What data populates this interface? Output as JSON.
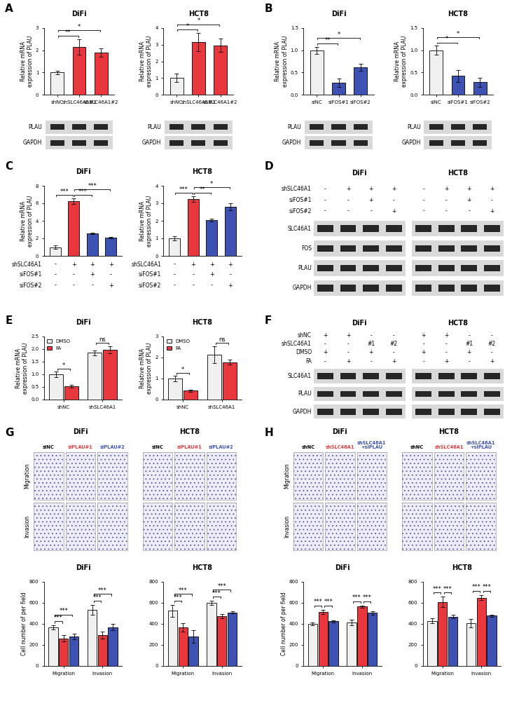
{
  "panel_labels": [
    "A",
    "B",
    "C",
    "D",
    "E",
    "F",
    "G",
    "H"
  ],
  "chart_data": [
    {
      "type": "bar",
      "title": "DiFi",
      "y_label": "Relative mRNA\nexpression of PLAU",
      "categories": [
        "shNC",
        "shSLC46A1#1",
        "shSLC46A1#2"
      ],
      "values": [
        1.0,
        2.15,
        1.9
      ],
      "errors": [
        0.08,
        0.35,
        0.2
      ],
      "colors": [
        "#f0f0f0",
        "#e8383d",
        "#e8383d"
      ],
      "ylim": [
        0,
        3
      ],
      "yticks": [
        0,
        1,
        2,
        3
      ],
      "brackets": [
        {
          "from": 0,
          "to": 1,
          "label": "**"
        },
        {
          "from": 0,
          "to": 2,
          "label": "*"
        }
      ]
    },
    {
      "type": "bar",
      "title": "HCT8",
      "y_label": "Relative mRNA\nexpression of PLAU",
      "categories": [
        "shNC",
        "shSLC46A1#1",
        "shSLC46A1#2"
      ],
      "values": [
        1.0,
        3.15,
        2.95
      ],
      "errors": [
        0.25,
        0.55,
        0.4
      ],
      "colors": [
        "#f0f0f0",
        "#e8383d",
        "#e8383d"
      ],
      "ylim": [
        0,
        4
      ],
      "yticks": [
        0,
        1,
        2,
        3,
        4
      ],
      "brackets": [
        {
          "from": 0,
          "to": 1,
          "label": "*"
        },
        {
          "from": 0,
          "to": 2,
          "label": "*"
        }
      ]
    },
    {
      "type": "bar",
      "title": "DiFi",
      "y_label": "Relative mRNA\nexpression of PLAU",
      "categories": [
        "siNC",
        "siFOS#1",
        "siFOS#2"
      ],
      "values": [
        1.0,
        0.27,
        0.62
      ],
      "errors": [
        0.08,
        0.1,
        0.08
      ],
      "colors": [
        "#f0f0f0",
        "#3d52b3",
        "#3d52b3"
      ],
      "ylim": [
        0,
        1.5
      ],
      "yticks": [
        {
          "value": 0,
          "label": "0.0"
        },
        0.5,
        {
          "value": 1,
          "label": "1.0"
        },
        1.5
      ],
      "brackets": [
        {
          "from": 0,
          "to": 1,
          "label": "**"
        },
        {
          "from": 0,
          "to": 2,
          "label": "*"
        }
      ]
    },
    {
      "type": "bar",
      "title": "HCT8",
      "y_label": "Relative mRNA\nexpression of PLAU",
      "categories": [
        "siNC",
        "siFOS#1",
        "siFOS#2"
      ],
      "values": [
        1.0,
        0.42,
        0.28
      ],
      "errors": [
        0.1,
        0.13,
        0.1
      ],
      "colors": [
        "#f0f0f0",
        "#3d52b3",
        "#3d52b3"
      ],
      "ylim": [
        0,
        1.5
      ],
      "yticks": [
        {
          "value": 0,
          "label": "0.0"
        },
        0.5,
        {
          "value": 1,
          "label": "1.0"
        },
        1.5
      ],
      "brackets": [
        {
          "from": 0,
          "to": 1,
          "label": "*"
        },
        {
          "from": 0,
          "to": 2,
          "label": "*"
        }
      ]
    },
    {
      "type": "bar",
      "title": "DiFi",
      "y_label": "Relative mRNA\nexpression of PLAU",
      "categories": [
        null,
        null,
        null,
        null
      ],
      "values": [
        1.0,
        6.25,
        2.55,
        2.1
      ],
      "errors": [
        0.2,
        0.3,
        0.1,
        0.1
      ],
      "colors": [
        "#f0f0f0",
        "#e8383d",
        "#3d52b3",
        "#3d52b3"
      ],
      "ylim": [
        0,
        8
      ],
      "yticks": [
        0,
        2,
        4,
        6,
        8
      ],
      "condition_table": {
        "rows": [
          {
            "name": "shSLC46A1",
            "marks": [
              "-",
              "+",
              "+",
              "+"
            ]
          },
          {
            "name": "siFOS#1",
            "marks": [
              "-",
              "-",
              "+",
              "-"
            ]
          },
          {
            "name": "siFOS#2",
            "marks": [
              "-",
              "-",
              "-",
              "+"
            ]
          }
        ]
      },
      "brackets": [
        {
          "from": 0,
          "to": 1,
          "label": "***"
        },
        {
          "from": 1,
          "to": 2,
          "label": "***"
        },
        {
          "from": 1,
          "to": 3,
          "label": "***"
        }
      ]
    },
    {
      "type": "bar",
      "title": "HCT8",
      "y_label": "Relative mRNA\nexpression of PLAU",
      "categories": [
        null,
        null,
        null,
        null
      ],
      "values": [
        1.0,
        3.25,
        2.05,
        2.8
      ],
      "errors": [
        0.12,
        0.15,
        0.08,
        0.2
      ],
      "colors": [
        "#f0f0f0",
        "#e8383d",
        "#3d52b3",
        "#3d52b3"
      ],
      "ylim": [
        0,
        4
      ],
      "yticks": [
        0,
        1,
        2,
        3,
        4
      ],
      "condition_table": {
        "rows": [
          {
            "name": "shSLC46A1",
            "marks": [
              "-",
              "+",
              "+",
              "+"
            ]
          },
          {
            "name": "siFOS#1",
            "marks": [
              "-",
              "-",
              "+",
              "-"
            ]
          },
          {
            "name": "siFOS#2",
            "marks": [
              "-",
              "-",
              "-",
              "+"
            ]
          }
        ]
      },
      "brackets": [
        {
          "from": 0,
          "to": 1,
          "label": "***"
        },
        {
          "from": 1,
          "to": 2,
          "label": "**"
        },
        {
          "from": 1,
          "to": 3,
          "label": "*"
        }
      ]
    },
    {
      "type": "grouped_bar",
      "title": "DiFi",
      "y_label": "Relative mRNA\nexpression of PLAU",
      "categories": [
        "shNC",
        "shSLC46A1"
      ],
      "series": [
        {
          "name": "DMSO",
          "color": "#f0f0f0",
          "values": [
            1.0,
            1.85
          ],
          "errors": [
            0.1,
            0.1
          ]
        },
        {
          "name": "FA",
          "color": "#e8383d",
          "values": [
            0.52,
            1.97
          ],
          "errors": [
            0.05,
            0.15
          ]
        }
      ],
      "legend": "upper left",
      "ylim": [
        0,
        2.5
      ],
      "yticks": [
        {
          "value": 0,
          "label": "0.0"
        },
        0.5,
        {
          "value": 1,
          "label": "1.0"
        },
        1.5,
        {
          "value": 2,
          "label": "2.0"
        },
        2.5
      ],
      "brackets": [
        {
          "category": 0,
          "from": 0,
          "to": 1,
          "label": "*"
        },
        {
          "category": 1,
          "from": 0,
          "to": 1,
          "label": "ns"
        }
      ]
    },
    {
      "type": "grouped_bar",
      "title": "HCT8",
      "y_label": "Relative mRNA\nexpression of PLAU",
      "categories": [
        "shNC",
        "shSLC46A1"
      ],
      "series": [
        {
          "name": "DMSO",
          "color": "#f0f0f0",
          "values": [
            1.0,
            2.15
          ],
          "errors": [
            0.12,
            0.4
          ]
        },
        {
          "name": "FA",
          "color": "#e8383d",
          "values": [
            0.42,
            1.78
          ],
          "errors": [
            0.05,
            0.12
          ]
        }
      ],
      "legend": "upper left",
      "ylim": [
        0,
        3
      ],
      "yticks": [
        0,
        1,
        2,
        3
      ],
      "brackets": [
        {
          "category": 0,
          "from": 0,
          "to": 1,
          "label": "*"
        },
        {
          "category": 1,
          "from": 0,
          "to": 1,
          "label": "ns"
        }
      ]
    },
    {
      "type": "grouped_bar",
      "title": "DiFi",
      "y_label": "Cell number of per field",
      "categories": [
        "Migration",
        "Invasion"
      ],
      "series": [
        {
          "color": "#f0f0f0",
          "values": [
            365,
            535
          ],
          "errors": [
            20,
            45
          ]
        },
        {
          "color": "#e8383d",
          "values": [
            262,
            295
          ],
          "errors": [
            30,
            35
          ]
        },
        {
          "color": "#3d52b3",
          "values": [
            280,
            370
          ],
          "errors": [
            25,
            30
          ]
        }
      ],
      "ylim": [
        0,
        800
      ],
      "yticks": [
        0,
        200,
        400,
        600,
        800
      ],
      "brackets": [
        {
          "category": 0,
          "from": 0,
          "to": 1,
          "label": "***"
        },
        {
          "category": 0,
          "from": 0,
          "to": 2,
          "label": "***"
        },
        {
          "category": 1,
          "from": 0,
          "to": 1,
          "label": "***"
        },
        {
          "category": 1,
          "from": 0,
          "to": 2,
          "label": "***"
        }
      ]
    },
    {
      "type": "grouped_bar",
      "title": "HCT8",
      "categories": [
        "Migration",
        "Invasion"
      ],
      "series": [
        {
          "color": "#f0f0f0",
          "values": [
            525,
            600
          ],
          "errors": [
            55,
            20
          ]
        },
        {
          "color": "#e8383d",
          "values": [
            370,
            475
          ],
          "errors": [
            40,
            20
          ]
        },
        {
          "color": "#3d52b3",
          "values": [
            280,
            510
          ],
          "errors": [
            60,
            10
          ]
        }
      ],
      "ylim": [
        0,
        800
      ],
      "yticks": [
        0,
        200,
        400,
        600,
        800
      ],
      "brackets": [
        {
          "category": 0,
          "from": 0,
          "to": 1,
          "label": "***"
        },
        {
          "category": 0,
          "from": 0,
          "to": 2,
          "label": "***"
        },
        {
          "category": 1,
          "from": 0,
          "to": 1,
          "label": "***"
        },
        {
          "category": 1,
          "from": 0,
          "to": 2,
          "label": "***"
        }
      ]
    },
    {
      "type": "grouped_bar",
      "title": "DiFi",
      "y_label": "Cell number of per field",
      "categories": [
        "Migration",
        "Invasion"
      ],
      "series": [
        {
          "color": "#f0f0f0",
          "values": [
            400,
            415
          ],
          "errors": [
            15,
            25
          ]
        },
        {
          "color": "#e8383d",
          "values": [
            515,
            565
          ],
          "errors": [
            20,
            10
          ]
        },
        {
          "color": "#3d52b3",
          "values": [
            425,
            505
          ],
          "errors": [
            10,
            15
          ]
        }
      ],
      "ylim": [
        0,
        800
      ],
      "yticks": [
        0,
        200,
        400,
        600,
        800
      ],
      "brackets": [
        {
          "category": 0,
          "from": 0,
          "to": 1,
          "label": "***"
        },
        {
          "category": 0,
          "from": 1,
          "to": 2,
          "label": "***"
        },
        {
          "category": 1,
          "from": 0,
          "to": 1,
          "label": "***"
        },
        {
          "category": 1,
          "from": 1,
          "to": 2,
          "label": "***"
        }
      ]
    },
    {
      "type": "grouped_bar",
      "title": "HCT8",
      "categories": [
        "Migration",
        "Invasion"
      ],
      "series": [
        {
          "color": "#f0f0f0",
          "values": [
            430,
            410
          ],
          "errors": [
            25,
            40
          ]
        },
        {
          "color": "#e8383d",
          "values": [
            610,
            650
          ],
          "errors": [
            50,
            25
          ]
        },
        {
          "color": "#3d52b3",
          "values": [
            470,
            480
          ],
          "errors": [
            15,
            10
          ]
        }
      ],
      "ylim": [
        0,
        800
      ],
      "yticks": [
        0,
        200,
        400,
        600,
        800
      ],
      "brackets": [
        {
          "category": 0,
          "from": 0,
          "to": 1,
          "label": "***"
        },
        {
          "category": 0,
          "from": 1,
          "to": 2,
          "label": "***"
        },
        {
          "category": 1,
          "from": 0,
          "to": 1,
          "label": "***"
        },
        {
          "category": 1,
          "from": 1,
          "to": 2,
          "label": "***"
        }
      ]
    }
  ],
  "blots": [
    {
      "type": "simple",
      "bands": [
        "PLAU",
        "GAPDH"
      ]
    },
    {
      "type": "simple",
      "bands": [
        "PLAU",
        "GAPDH"
      ]
    },
    {
      "type": "simple",
      "bands": [
        "PLAU",
        "GAPDH"
      ]
    },
    {
      "type": "simple",
      "bands": [
        "PLAU",
        "GAPDH"
      ]
    },
    {
      "type": "lane_table",
      "row_names": [
        "shSLC46A1",
        "siFOS#1",
        "siFOS#2"
      ],
      "groups": [
        {
          "title": "DiFi",
          "marks": [
            [
              "-",
              "+",
              "+",
              "+"
            ],
            [
              "-",
              "-",
              "+",
              "-"
            ],
            [
              "-",
              "-",
              "-",
              "+"
            ]
          ]
        },
        {
          "title": "HCT8",
          "marks": [
            [
              "-",
              "+",
              "+",
              "+"
            ],
            [
              "-",
              "-",
              "+",
              "-"
            ],
            [
              "-",
              "-",
              "-",
              "+"
            ]
          ]
        }
      ],
      "bands": [
        "SLC46A1",
        "FOS",
        "PLAU",
        "GAPDH"
      ]
    },
    {
      "type": "lane_table",
      "row_names": [
        "shNC",
        "shSLC46A1",
        "DMSO",
        "FA"
      ],
      "groups": [
        {
          "title": "DiFi",
          "marks": [
            [
              "+",
              "+",
              "-",
              "-"
            ],
            [
              "-",
              "-",
              "#1",
              "#2"
            ],
            [
              "+",
              "-",
              "+",
              "-"
            ],
            [
              "-",
              "+",
              "-",
              "+"
            ]
          ]
        },
        {
          "title": "HCT8",
          "marks": [
            [
              "+",
              "+",
              "-",
              "-"
            ],
            [
              "-",
              "-",
              "#1",
              "#2"
            ],
            [
              "+",
              "-",
              "+",
              "-"
            ],
            [
              "-",
              "+",
              "-",
              "+"
            ]
          ]
        }
      ],
      "bands": [
        "SLC46A1",
        "PLAU",
        "GAPDH"
      ]
    }
  ],
  "image_grids": [
    {
      "title": "DiFi",
      "row_labels": [
        "Migration",
        "Invasion"
      ],
      "columns": [
        {
          "label": "siNC",
          "color": "#000000"
        },
        {
          "label": "siPLAU#1",
          "color": "#e8383d"
        },
        {
          "label": "siPLAU#2",
          "color": "#3d52b3"
        }
      ]
    },
    {
      "title": "HCT8",
      "columns": [
        {
          "label": "siNC",
          "color": "#000000"
        },
        {
          "label": "siPLAU#1",
          "color": "#e8383d"
        },
        {
          "label": "siPLAU#2",
          "color": "#3d52b3"
        }
      ]
    },
    {
      "title": "DiFi",
      "row_labels": [
        "Migration",
        "Invasion"
      ],
      "columns": [
        {
          "label": "shNC",
          "color": "#000000"
        },
        {
          "label": "shSLC46A1",
          "color": "#e8383d"
        },
        {
          "label": "shSLC46A1\n+siPLAU",
          "color": "#3d52b3"
        }
      ]
    },
    {
      "title": "HCT8",
      "columns": [
        {
          "label": "shNC",
          "color": "#000000"
        },
        {
          "label": "shSLC46A1",
          "color": "#e8383d"
        },
        {
          "label": "shSLC46A1\n+siPLAU",
          "color": "#3d52b3"
        }
      ]
    }
  ]
}
